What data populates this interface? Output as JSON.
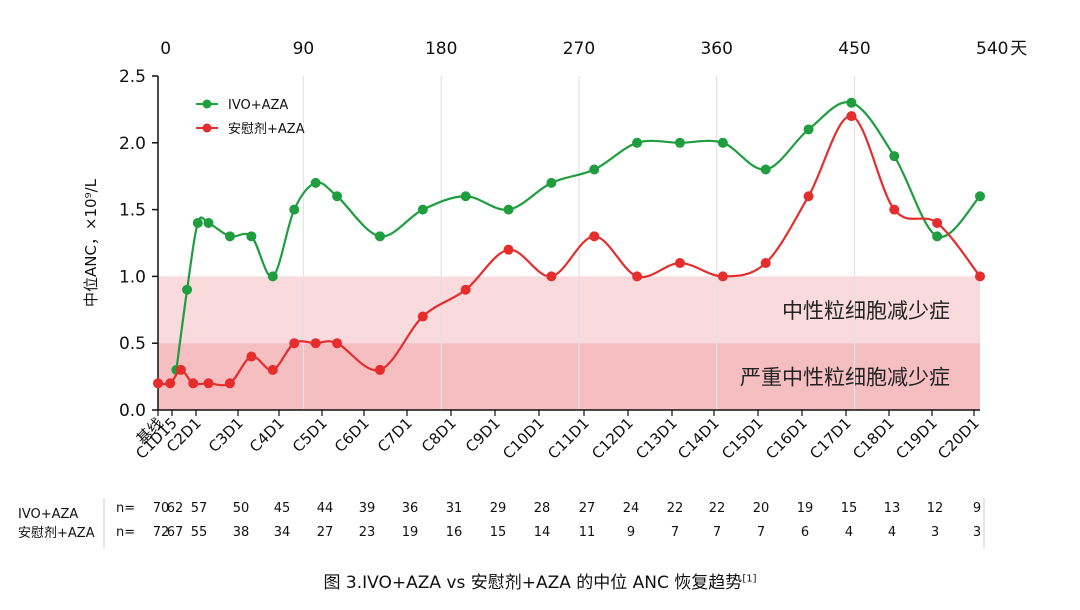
{
  "chart_data": {
    "type": "line",
    "categories": [
      "基线",
      "C1D15",
      "C2D1",
      "C3D1",
      "C4D1",
      "C5D1",
      "C6D1",
      "C7D1",
      "C8D1",
      "C9D1",
      "C10D1",
      "C11D1",
      "C12D1",
      "C13D1",
      "C14D1",
      "C15D1",
      "C16D1",
      "C17D1",
      "C18D1",
      "C19D1",
      "C20D1"
    ],
    "ylabel": "中位ANC，×10⁹/L",
    "ylim": [
      0,
      2.5
    ],
    "yticks": [
      "0.0",
      "0.5",
      "1.0",
      "1.5",
      "2.0",
      "2.5"
    ],
    "x_days_top": [
      "0",
      "90",
      "180",
      "270",
      "360",
      "450",
      "540"
    ],
    "top_axis_unit": "天",
    "series": [
      {
        "name": "IVO+AZA",
        "color": "#1e9e3e",
        "points": [
          {
            "day": 7,
            "value": 0.3
          },
          {
            "day": 14,
            "value": 0.9
          },
          {
            "day": 21,
            "value": 1.4
          },
          {
            "day": 28,
            "value": 1.4
          },
          {
            "day": 42,
            "value": 1.3
          },
          {
            "day": 56,
            "value": 1.3
          },
          {
            "day": 70,
            "value": 1.0
          },
          {
            "day": 84,
            "value": 1.5
          },
          {
            "day": 98,
            "value": 1.7
          },
          {
            "day": 112,
            "value": 1.6
          },
          {
            "day": 140,
            "value": 1.3
          },
          {
            "day": 168,
            "value": 1.5
          },
          {
            "day": 196,
            "value": 1.6
          },
          {
            "day": 224,
            "value": 1.5
          },
          {
            "day": 252,
            "value": 1.7
          },
          {
            "day": 280,
            "value": 1.8
          },
          {
            "day": 308,
            "value": 2.0
          },
          {
            "day": 336,
            "value": 2.0
          },
          {
            "day": 364,
            "value": 2.0
          },
          {
            "day": 392,
            "value": 1.8
          },
          {
            "day": 420,
            "value": 2.1
          },
          {
            "day": 448,
            "value": 2.3
          },
          {
            "day": 476,
            "value": 1.9
          },
          {
            "day": 504,
            "value": 1.3
          },
          {
            "day": 532,
            "value": 1.6
          }
        ]
      },
      {
        "name": "安慰剂+AZA",
        "color": "#e52d2d",
        "points": [
          {
            "day": -5,
            "value": 0.2
          },
          {
            "day": 3,
            "value": 0.2
          },
          {
            "day": 10,
            "value": 0.3
          },
          {
            "day": 18,
            "value": 0.2
          },
          {
            "day": 28,
            "value": 0.2
          },
          {
            "day": 42,
            "value": 0.2
          },
          {
            "day": 56,
            "value": 0.4
          },
          {
            "day": 70,
            "value": 0.3
          },
          {
            "day": 84,
            "value": 0.5
          },
          {
            "day": 98,
            "value": 0.5
          },
          {
            "day": 112,
            "value": 0.5
          },
          {
            "day": 140,
            "value": 0.3
          },
          {
            "day": 168,
            "value": 0.7
          },
          {
            "day": 196,
            "value": 0.9
          },
          {
            "day": 224,
            "value": 1.2
          },
          {
            "day": 252,
            "value": 1.0
          },
          {
            "day": 280,
            "value": 1.3
          },
          {
            "day": 308,
            "value": 1.0
          },
          {
            "day": 336,
            "value": 1.1
          },
          {
            "day": 364,
            "value": 1.0
          },
          {
            "day": 392,
            "value": 1.1
          },
          {
            "day": 420,
            "value": 1.6
          },
          {
            "day": 448,
            "value": 2.2
          },
          {
            "day": 476,
            "value": 1.5
          },
          {
            "day": 504,
            "value": 1.4
          },
          {
            "day": 532,
            "value": 1.0
          }
        ]
      }
    ],
    "bands": [
      {
        "label": "中性粒细胞减少症",
        "from": 0.5,
        "to": 1.0,
        "color": "#f9dadd"
      },
      {
        "label": "严重中性粒细胞减少症",
        "from": 0.0,
        "to": 0.5,
        "color": "#f5bfc2"
      }
    ],
    "legend_position": "top-left",
    "grid": "vertical"
  },
  "n_table": {
    "prefix": "n=",
    "rows": [
      {
        "name": "IVO+AZA",
        "values": [
          "70",
          "62",
          "57",
          "50",
          "45",
          "44",
          "39",
          "36",
          "31",
          "29",
          "28",
          "27",
          "24",
          "22",
          "22",
          "20",
          "19",
          "15",
          "13",
          "12",
          "9"
        ]
      },
      {
        "name": "安慰剂+AZA",
        "values": [
          "72",
          "67",
          "55",
          "38",
          "34",
          "27",
          "23",
          "19",
          "16",
          "15",
          "14",
          "11",
          "9",
          "7",
          "7",
          "7",
          "6",
          "4",
          "4",
          "3",
          "3"
        ]
      }
    ]
  },
  "caption": {
    "text": "图 3.IVO+AZA vs 安慰剂+AZA 的中位 ANC 恢复趋势",
    "ref": "[1]"
  }
}
